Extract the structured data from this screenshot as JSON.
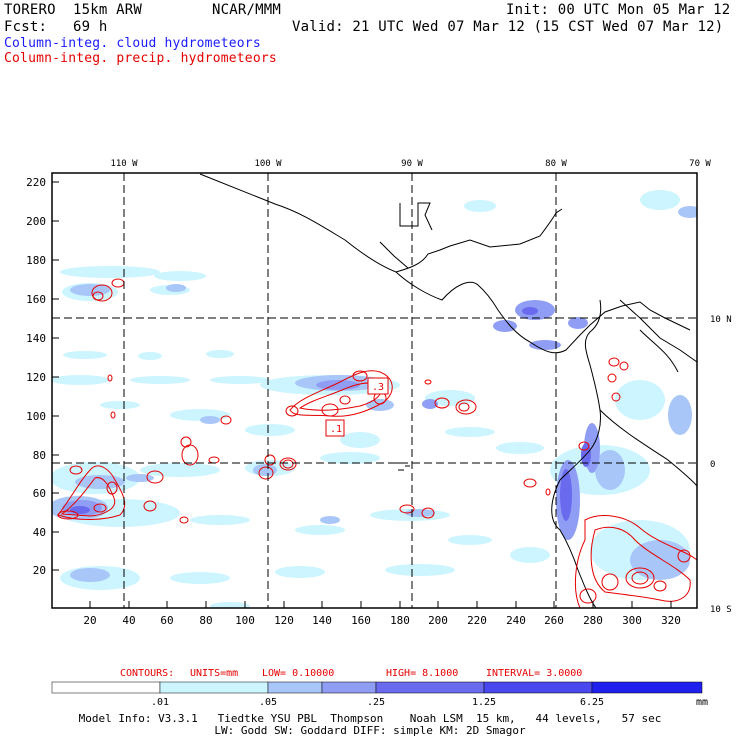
{
  "header": {
    "model": "TORERO  15km ARW",
    "org": "NCAR/MMM",
    "init": "Init: 00 UTC Mon 05 Mar 12",
    "fcst": "Fcst:   69 h",
    "valid": "Valid: 21 UTC Wed 07 Mar 12 (15 CST Wed 07 Mar 12)",
    "legend_blue": "Column-integ. cloud hydrometeors",
    "legend_red": "Column-integ. precip. hydrometeors"
  },
  "map": {
    "lon_labels": [
      "110 W",
      "100 W",
      "90 W",
      "80 W",
      "70 W"
    ],
    "lat_labels": [
      "10 N",
      "0",
      "10 S"
    ],
    "x_ticks": [
      "20",
      "40",
      "60",
      "80",
      "100",
      "120",
      "140",
      "160",
      "180",
      "200",
      "220",
      "240",
      "260",
      "280",
      "300",
      "320"
    ],
    "y_ticks": [
      "20",
      "40",
      "60",
      "80",
      "100",
      "120",
      "140",
      "160",
      "180",
      "200",
      "220"
    ],
    "x_range": [
      0,
      334
    ],
    "y_range": [
      0,
      224
    ],
    "contour_labels": [
      ".1",
      ".3"
    ]
  },
  "contours_info": {
    "label": "CONTOURS:",
    "units": "UNITS=mm",
    "low": "LOW= 0.10000",
    "high": "HIGH= 8.1000",
    "interval": "INTERVAL= 3.0000"
  },
  "colorbar": {
    "ticks": [
      ".01",
      ".05",
      ".25",
      "1.25",
      "6.25"
    ],
    "unit": "mm",
    "colors": [
      "#ffffff",
      "#ccf5ff",
      "#a9c6f9",
      "#8f9ef4",
      "#6a6aee",
      "#4848ee",
      "#2020ee"
    ]
  },
  "footer": {
    "line1": "Model Info: V3.3.1   Tiedtke YSU PBL  Thompson    Noah LSM  15 km,   44 levels,   57 sec",
    "line2": "LW: Godd SW: Goddard DIFF: simple KM: 2D Smagor"
  }
}
